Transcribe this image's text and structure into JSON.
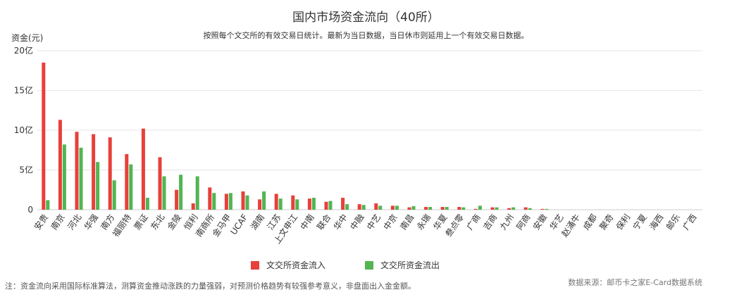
{
  "header": {
    "title": "国内市场资金流向（40所）",
    "subtitle": "按照每个文交所的有效交易日统计。最新为当日数据，当日休市则延用上一个有效交易日数据。"
  },
  "footer": {
    "note": "注：资金流向采用国际标准算法，测算资金推动涨跌的力量强弱，对预测价格趋势有较强参考意义，非盘面出入金金额。",
    "source": "数据来源：邮币卡之家E-Card数据系统"
  },
  "chart_data": {
    "type": "bar",
    "title": "国内市场资金流向（40所）",
    "ylabel": "资金(元)",
    "ylim": [
      0,
      20
    ],
    "yticks": [
      "0",
      "5亿",
      "10亿",
      "15亿",
      "20亿"
    ],
    "grid": true,
    "legend_position": "bottom-center",
    "categories": [
      "安贵",
      "南京",
      "河北",
      "华强",
      "南方",
      "福丽特",
      "票证",
      "东北",
      "金陵",
      "恒利",
      "南商所",
      "金马甲",
      "UCAF",
      "湖南",
      "江苏",
      "上文申江",
      "中南",
      "联合",
      "华中",
      "中融",
      "中艺",
      "中京",
      "南昌",
      "永瑞",
      "华夏",
      "叁点零",
      "广商",
      "吉商",
      "九州",
      "阿商",
      "安徽",
      "华艺",
      "赵涌牛",
      "成都",
      "聚奇",
      "保利",
      "宁夏",
      "海西",
      "邮乐",
      "广西"
    ],
    "series": [
      {
        "name": "文交所资金流入",
        "color": "#e8403a",
        "values": [
          18.5,
          11.3,
          9.8,
          9.5,
          9.1,
          7.0,
          10.2,
          6.6,
          2.5,
          0.8,
          2.8,
          2.0,
          2.3,
          1.3,
          2.0,
          1.8,
          1.4,
          1.0,
          1.5,
          0.7,
          0.8,
          0.5,
          0.3,
          0.35,
          0.35,
          0.35,
          0.1,
          0.3,
          0.2,
          0.3,
          0.1,
          0,
          0,
          0,
          0,
          0,
          0,
          0,
          0,
          0
        ]
      },
      {
        "name": "文交所资金流出",
        "color": "#52b552",
        "values": [
          1.2,
          8.2,
          7.8,
          6.0,
          3.7,
          5.7,
          1.5,
          4.2,
          4.4,
          4.2,
          2.1,
          2.1,
          1.8,
          2.3,
          1.4,
          1.3,
          1.5,
          1.1,
          0.7,
          0.6,
          0.5,
          0.5,
          0.45,
          0.35,
          0.35,
          0.3,
          0.5,
          0.3,
          0.3,
          0.2,
          0.1,
          0,
          0,
          0,
          0,
          0,
          0,
          0,
          0,
          0
        ]
      }
    ]
  }
}
